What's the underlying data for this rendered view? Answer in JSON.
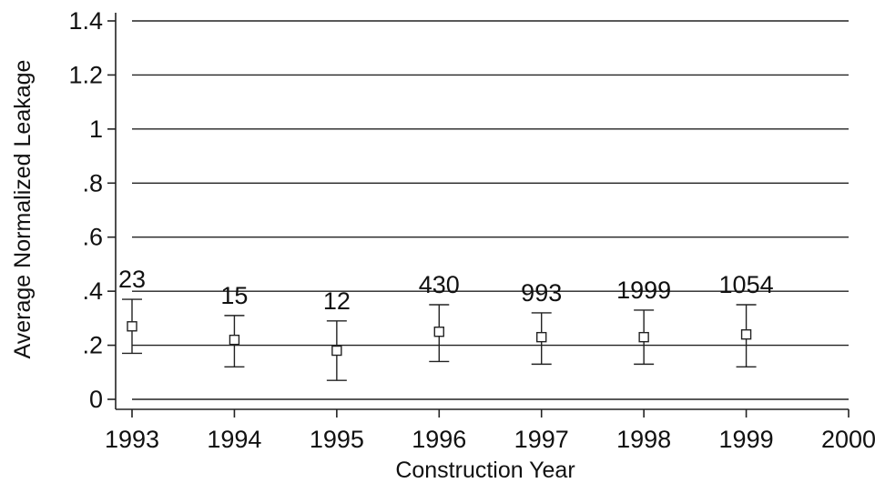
{
  "chart_data": {
    "type": "scatter",
    "title": "",
    "xlabel": "Construction Year",
    "ylabel": "Average Normalized Leakage",
    "xlim": [
      1993,
      2000
    ],
    "ylim": [
      0,
      1.4
    ],
    "x_ticks": [
      1993,
      1994,
      1995,
      1996,
      1997,
      1998,
      1999,
      2000
    ],
    "y_ticks": [
      {
        "value": 0,
        "label": "0"
      },
      {
        "value": 0.2,
        "label": ".2"
      },
      {
        "value": 0.4,
        "label": ".4"
      },
      {
        "value": 0.6,
        "label": ".6"
      },
      {
        "value": 0.8,
        "label": ".8"
      },
      {
        "value": 1.0,
        "label": "1"
      },
      {
        "value": 1.2,
        "label": "1.2"
      },
      {
        "value": 1.4,
        "label": "1.4"
      }
    ],
    "grid": true,
    "points": [
      {
        "x": 1993,
        "y": 0.27,
        "lower": 0.17,
        "upper": 0.37,
        "label": "23"
      },
      {
        "x": 1994,
        "y": 0.22,
        "lower": 0.12,
        "upper": 0.31,
        "label": "15"
      },
      {
        "x": 1995,
        "y": 0.18,
        "lower": 0.07,
        "upper": 0.29,
        "label": "12"
      },
      {
        "x": 1996,
        "y": 0.25,
        "lower": 0.14,
        "upper": 0.35,
        "label": "430"
      },
      {
        "x": 1997,
        "y": 0.23,
        "lower": 0.13,
        "upper": 0.32,
        "label": "993"
      },
      {
        "x": 1998,
        "y": 0.23,
        "lower": 0.13,
        "upper": 0.33,
        "label": "1999"
      },
      {
        "x": 1999,
        "y": 0.24,
        "lower": 0.12,
        "upper": 0.35,
        "label": "1054"
      }
    ]
  }
}
